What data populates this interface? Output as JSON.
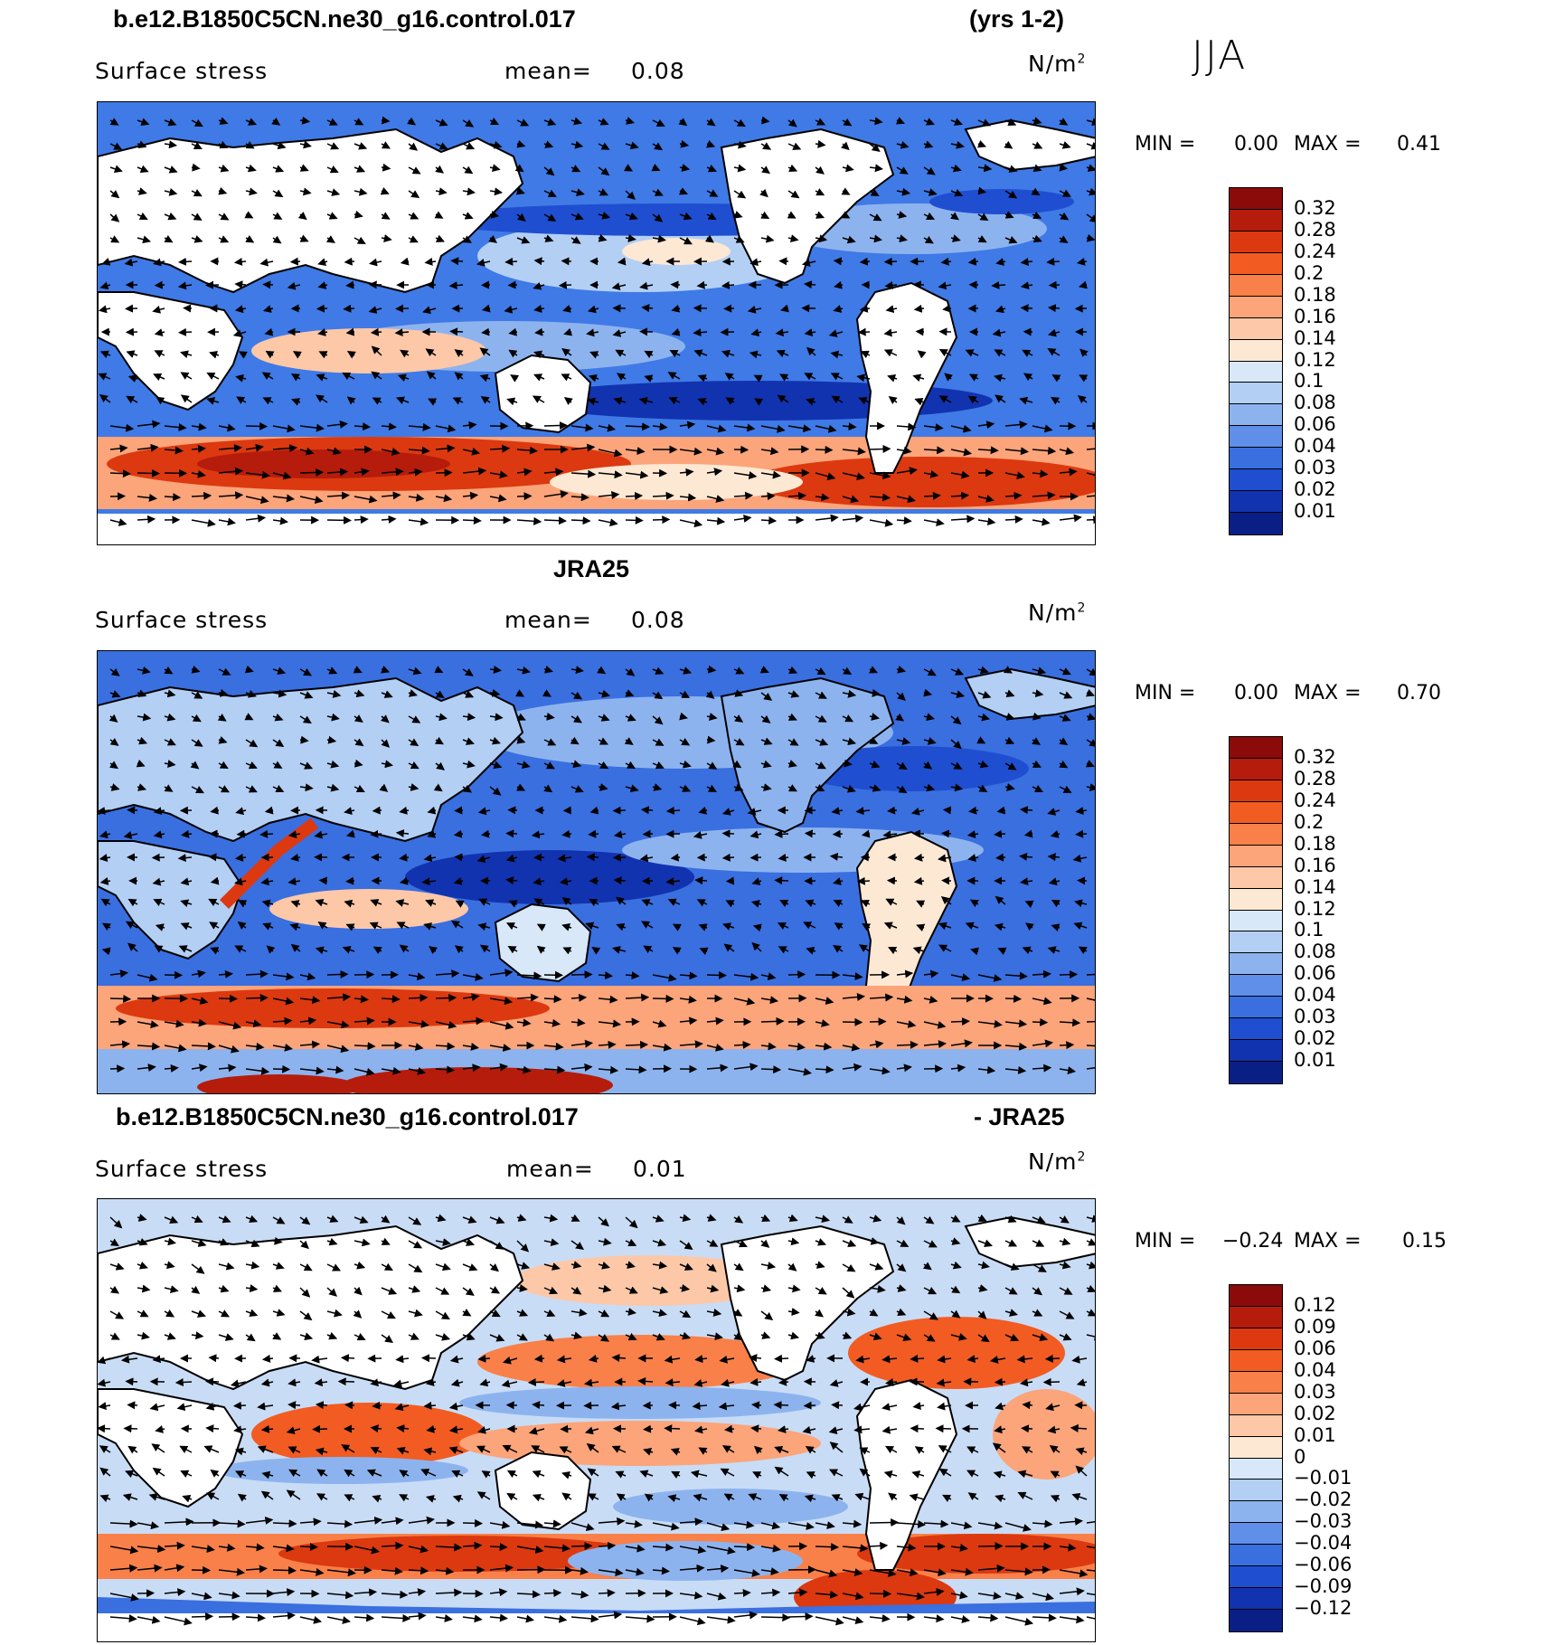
{
  "season": "JJA",
  "panels": [
    {
      "title_left": "b.e12.B1850C5CN.ne30_g16.control.017",
      "title_right": "(yrs 1-2)",
      "variable": "Surface stress",
      "mean_label": "mean=",
      "mean_value": "0.08",
      "units": "N/m",
      "units_sup": "2",
      "min_label": "MIN =",
      "min_value": "0.00",
      "max_label": "MAX =",
      "max_value": "0.41",
      "colorbar": {
        "labels": [
          "0.32",
          "0.28",
          "0.24",
          "0.2",
          "0.18",
          "0.16",
          "0.14",
          "0.12",
          "0.1",
          "0.08",
          "0.06",
          "0.04",
          "0.03",
          "0.02",
          "0.01"
        ],
        "colors": [
          "#8b0a0a",
          "#b51c0c",
          "#dc3910",
          "#f25c22",
          "#f98048",
          "#fca47a",
          "#fcc8a8",
          "#fde8d4",
          "#d8e8f8",
          "#b3cff4",
          "#8db3ef",
          "#5f8fe8",
          "#3a6fe0",
          "#1f4fd0",
          "#1233b0",
          "#0a1f86"
        ]
      },
      "background_color": "#3f7ae6"
    },
    {
      "title_center": "JRA25",
      "variable": "Surface stress",
      "mean_label": "mean=",
      "mean_value": "0.08",
      "units": "N/m",
      "units_sup": "2",
      "min_label": "MIN =",
      "min_value": "0.00",
      "max_label": "MAX =",
      "max_value": "0.70",
      "colorbar": {
        "labels": [
          "0.32",
          "0.28",
          "0.24",
          "0.2",
          "0.18",
          "0.16",
          "0.14",
          "0.12",
          "0.1",
          "0.08",
          "0.06",
          "0.04",
          "0.03",
          "0.02",
          "0.01"
        ],
        "colors": [
          "#8b0a0a",
          "#b51c0c",
          "#dc3910",
          "#f25c22",
          "#f98048",
          "#fca47a",
          "#fcc8a8",
          "#fde8d4",
          "#d8e8f8",
          "#b3cff4",
          "#8db3ef",
          "#5f8fe8",
          "#3a6fe0",
          "#1f4fd0",
          "#1233b0",
          "#0a1f86"
        ]
      },
      "background_color": "#3a6fe0"
    },
    {
      "title_left": "b.e12.B1850C5CN.ne30_g16.control.017",
      "title_right": "- JRA25",
      "variable": "Surface stress",
      "mean_label": "mean=",
      "mean_value": "0.01",
      "units": "N/m",
      "units_sup": "2",
      "min_label": "MIN =",
      "min_value": "−0.24",
      "max_label": "MAX =",
      "max_value": "0.15",
      "colorbar": {
        "labels": [
          "0.12",
          "0.09",
          "0.06",
          "0.04",
          "0.03",
          "0.02",
          "0.01",
          "0",
          "−0.01",
          "−0.02",
          "−0.03",
          "−0.04",
          "−0.06",
          "−0.09",
          "−0.12"
        ],
        "colors": [
          "#8b0a0a",
          "#b51c0c",
          "#dc3910",
          "#f25c22",
          "#f98048",
          "#fca47a",
          "#fcc8a8",
          "#fde8d4",
          "#d8e8f8",
          "#b3cff4",
          "#8db3ef",
          "#5f8fe8",
          "#3a6fe0",
          "#1f4fd0",
          "#1233b0",
          "#0a1f86"
        ]
      },
      "background_color": "#c9dcf5"
    }
  ]
}
